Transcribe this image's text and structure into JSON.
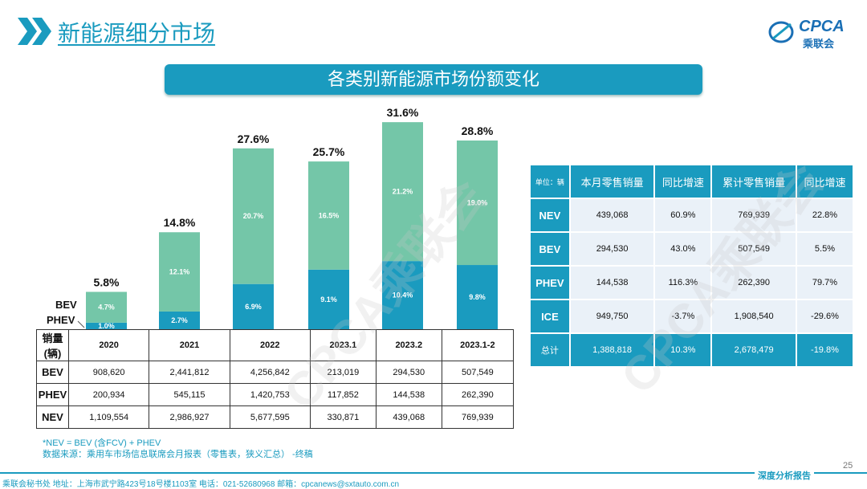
{
  "header": {
    "title": "新能源细分市场",
    "logo_text": "CPCA",
    "logo_sub": "乘联会"
  },
  "banner": "各类别新能源市场份额变化",
  "chart_data": {
    "type": "bar",
    "stacked": true,
    "categories": [
      "2020",
      "2021",
      "2022",
      "2023.1",
      "2023.2",
      "2023.1-2"
    ],
    "series": [
      {
        "name": "PHEV",
        "values": [
          1.0,
          2.7,
          6.9,
          9.1,
          10.4,
          9.8
        ],
        "color": "#1a9bbf"
      },
      {
        "name": "BEV",
        "values": [
          4.7,
          12.1,
          20.7,
          16.5,
          21.2,
          19.0
        ],
        "color": "#74c6a8"
      }
    ],
    "totals": [
      "5.8%",
      "14.8%",
      "27.6%",
      "25.7%",
      "31.6%",
      "28.8%"
    ],
    "segment_labels": [
      [
        "1.0%",
        "2.7%",
        "6.9%",
        "9.1%",
        "10.4%",
        "9.8%"
      ],
      [
        "4.7%",
        "12.1%",
        "20.7%",
        "16.5%",
        "21.2%",
        "19.0%"
      ]
    ],
    "ylim": [
      0,
      31.6
    ]
  },
  "legend": {
    "bev": "BEV",
    "phev": "PHEV"
  },
  "sales_table": {
    "header": [
      "销量(辆)",
      "2020",
      "2021",
      "2022",
      "2023.1",
      "2023.2",
      "2023.1-2"
    ],
    "rows": [
      [
        "BEV",
        "908,620",
        "2,441,812",
        "4,256,842",
        "213,019",
        "294,530",
        "507,549"
      ],
      [
        "PHEV",
        "200,934",
        "545,115",
        "1,420,753",
        "117,852",
        "144,538",
        "262,390"
      ],
      [
        "NEV",
        "1,109,554",
        "2,986,927",
        "5,677,595",
        "330,871",
        "439,068",
        "769,939"
      ]
    ]
  },
  "retail_table": {
    "header": [
      "单位：辆",
      "本月零售销量",
      "同比增速",
      "累计零售销量",
      "同比增速"
    ],
    "rows": [
      [
        "NEV",
        "439,068",
        "60.9%",
        "769,939",
        "22.8%"
      ],
      [
        "BEV",
        "294,530",
        "43.0%",
        "507,549",
        "5.5%"
      ],
      [
        "PHEV",
        "144,538",
        "116.3%",
        "262,390",
        "79.7%"
      ],
      [
        "ICE",
        "949,750",
        "-3.7%",
        "1,908,540",
        "-29.6%"
      ]
    ],
    "total": [
      "总计",
      "1,388,818",
      "10.3%",
      "2,678,479",
      "-19.8%"
    ]
  },
  "notes": [
    "*NEV = BEV (含FCV) + PHEV",
    "数据来源：乘用车市场信息联席会月报表（零售表，狭义汇总）   -终稿"
  ],
  "footer": {
    "address": "乘联会秘书处   地址：上海市武宁路423号18号楼1103室   电话：021-52680968   邮箱：cpcanews@sxtauto.com.cn",
    "report": "深度分析报告",
    "page": "25"
  }
}
